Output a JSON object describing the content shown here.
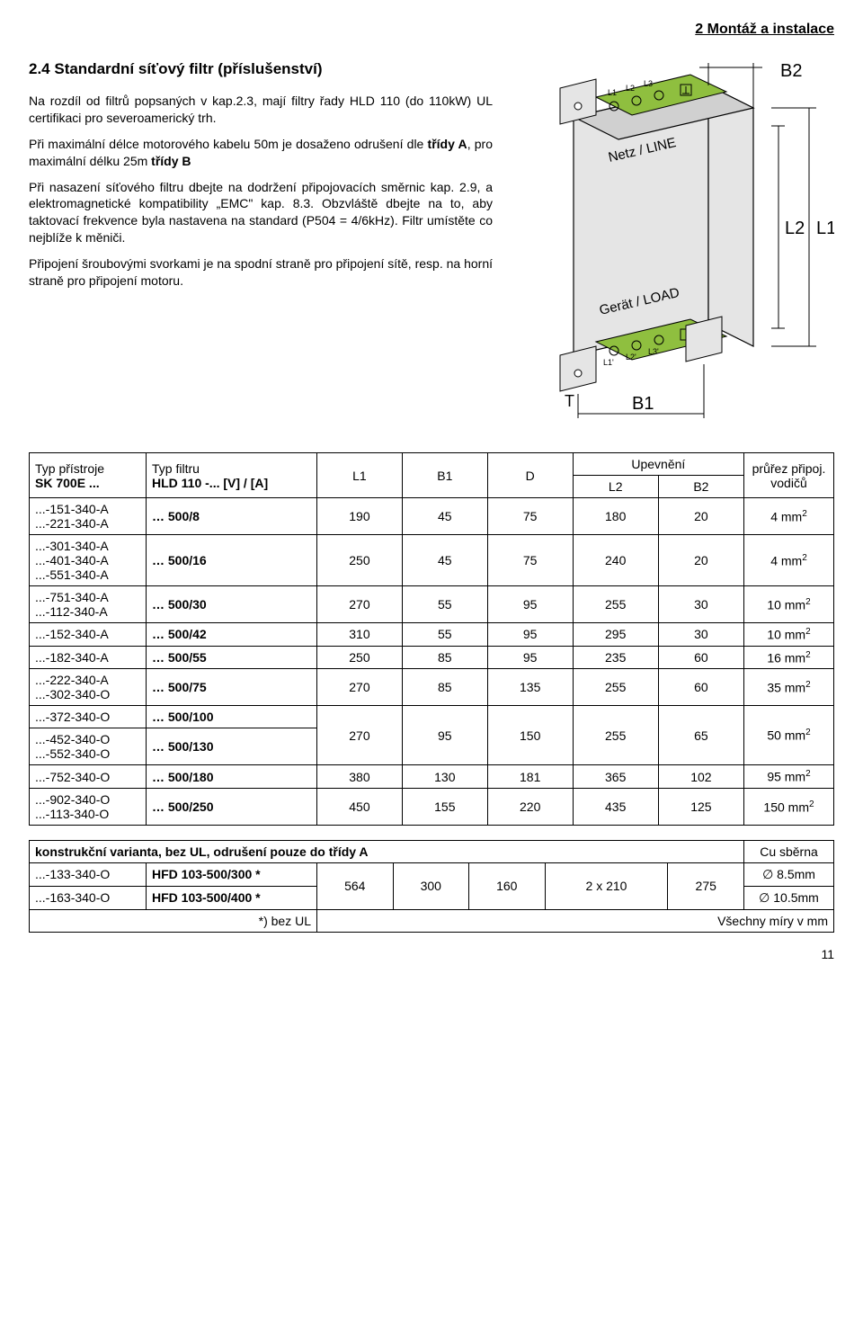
{
  "header": {
    "section": "2  Montáž a instalace"
  },
  "section_title": "2.4  Standardní síťový filtr (příslušenství)",
  "para1": "Na rozdíl od filtrů popsaných v kap.2.3, mají filtry řady HLD 110 (do 110kW) UL certifikaci pro severoamerický trh.",
  "para2": "Při maximální délce motorového kabelu 50m je dosaženo odrušení dle třídy A, pro maximální délku 25m třídy B",
  "para3": "Při nasazení síťového filtru dbejte na dodržení připojovacích směrnic kap. 2.9, a elektromagnetické kompatibility „EMC\" kap. 8.3. Obzvláště dbejte na to, aby taktovací frekvence byla nastavena na standard (P504 = 4/6kHz). Filtr umístěte co nejblíže k měniči.",
  "para4": "Připojení šroubovými svorkami je na spodní straně pro připojení sítě, resp. na horní straně pro připojení motoru.",
  "diagram": {
    "labels": {
      "L1": "L1",
      "L2": "L2",
      "L3": "L3",
      "L1p": "L1'",
      "L2p": "L2'",
      "L3p": "L3'",
      "netz": "Netz / LINE",
      "load": "Gerät / LOAD",
      "T": "T",
      "B1": "B1",
      "B2": "B2",
      "L1dim": "L1",
      "L2dim": "L2"
    },
    "colors": {
      "body": "#e5e5e5",
      "terminal": "#8fbf3f",
      "outline": "#000"
    }
  },
  "table1": {
    "head": {
      "typ_pristroje": "Typ přístroje",
      "sk": "SK 700E ...",
      "typ_filtru": "Typ filtru",
      "hld": "HLD 110 -...   [V] / [A]",
      "L1": "L1",
      "B1": "B1",
      "D": "D",
      "upevneni": "Upevnění",
      "L2": "L2",
      "B2": "B2",
      "prurez": "průřez připoj.\nvodičů"
    },
    "rows": [
      {
        "typ": [
          "...-151-340-A",
          "...-221-340-A"
        ],
        "filtr": "… 500/8",
        "L1": "190",
        "B1": "45",
        "D": "75",
        "L2": "180",
        "B2": "20",
        "mm": "4 mm²"
      },
      {
        "typ": [
          "...-301-340-A",
          "...-401-340-A",
          "...-551-340-A"
        ],
        "filtr": "… 500/16",
        "L1": "250",
        "B1": "45",
        "D": "75",
        "L2": "240",
        "B2": "20",
        "mm": "4 mm²"
      },
      {
        "typ": [
          "...-751-340-A",
          "...-112-340-A"
        ],
        "filtr": "… 500/30",
        "L1": "270",
        "B1": "55",
        "D": "95",
        "L2": "255",
        "B2": "30",
        "mm": "10 mm²"
      },
      {
        "typ": [
          "...-152-340-A"
        ],
        "filtr": "… 500/42",
        "L1": "310",
        "B1": "55",
        "D": "95",
        "L2": "295",
        "B2": "30",
        "mm": "10 mm²"
      },
      {
        "typ": [
          "...-182-340-A"
        ],
        "filtr": "… 500/55",
        "L1": "250",
        "B1": "85",
        "D": "95",
        "L2": "235",
        "B2": "60",
        "mm": "16 mm²"
      },
      {
        "typ": [
          "...-222-340-A",
          "...-302-340-O"
        ],
        "filtr": "… 500/75",
        "L1": "270",
        "B1": "85",
        "D": "135",
        "L2": "255",
        "B2": "60",
        "mm": "35 mm²"
      }
    ],
    "merged_group": {
      "r1": {
        "typ": [
          "...-372-340-O"
        ],
        "filtr": "… 500/100"
      },
      "r2": {
        "typ": [
          "...-452-340-O",
          "...-552-340-O"
        ],
        "filtr": "… 500/130"
      },
      "L1": "270",
      "B1": "95",
      "D": "150",
      "L2": "255",
      "B2": "65",
      "mm": "50 mm²"
    },
    "tail": [
      {
        "typ": [
          "...-752-340-O"
        ],
        "filtr": "… 500/180",
        "L1": "380",
        "B1": "130",
        "D": "181",
        "L2": "365",
        "B2": "102",
        "mm": "95 mm²"
      },
      {
        "typ": [
          "...-902-340-O",
          "...-113-340-O"
        ],
        "filtr": "… 500/250",
        "L1": "450",
        "B1": "155",
        "D": "220",
        "L2": "435",
        "B2": "125",
        "mm": "150 mm²"
      }
    ]
  },
  "table2": {
    "title": "konstrukční varianta, bez UL,  odrušení pouze do třídy A",
    "cu": "Cu sběrna",
    "rows": [
      {
        "typ": "...-133-340-O",
        "filtr": "HFD 103-500/300 *",
        "diam": "∅ 8.5mm"
      },
      {
        "typ": "...-163-340-O",
        "filtr": "HFD 103-500/400 *",
        "diam": "∅ 10.5mm"
      }
    ],
    "dims": {
      "L1": "564",
      "B1": "300",
      "D": "160",
      "L2": "2 x 210",
      "B2": "275"
    },
    "foot_left": "*) bez UL",
    "foot_right": "Všechny míry v mm"
  },
  "page_number": "11"
}
